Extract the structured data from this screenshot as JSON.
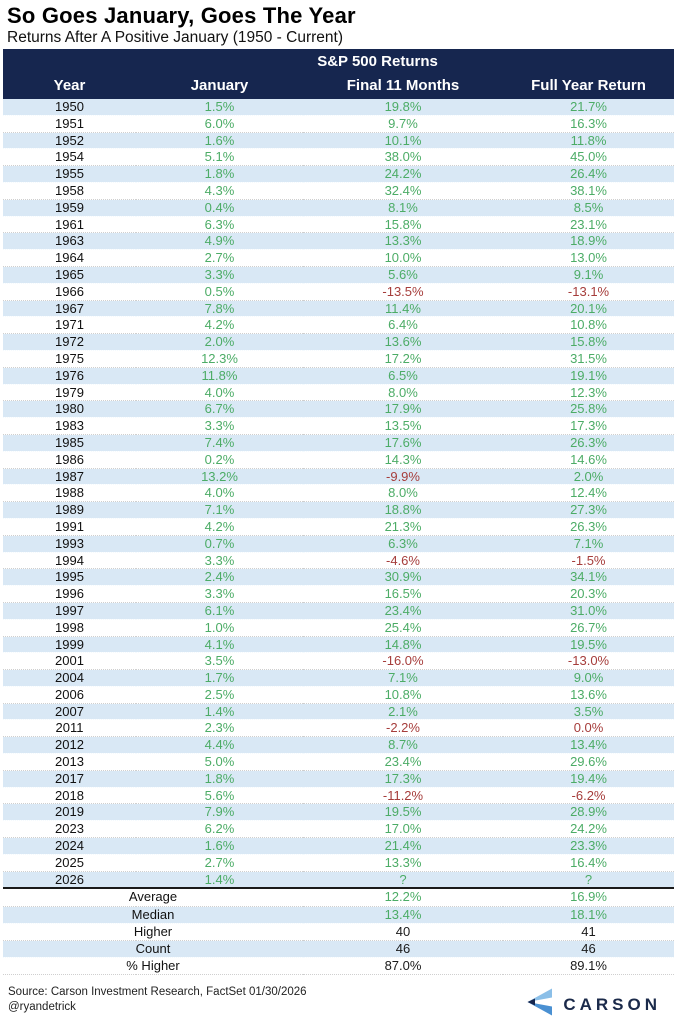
{
  "colors": {
    "header_bg": "#16264F",
    "row_stripe": "#D9E8F5",
    "positive_green": "#4CAC66",
    "negative_red": "#A63D3B",
    "text_black": "#1A1A1A",
    "logo_light_blue": "#8BBFE8",
    "logo_mid_blue": "#4A90D2",
    "logo_navy": "#16264F"
  },
  "footer": {
    "source": "Source: Carson Investment Research, FactSet 01/30/2026",
    "handle": "@ryandetrick",
    "logo_text": "CARSON",
    "logo_icon": "carson-chevron-icon"
  },
  "chart_data": {
    "type": "table",
    "title": "So Goes January, Goes The Year",
    "subtitle": "Returns After A Positive January (1950 - Current)",
    "group_header": "S&P 500 Returns",
    "columns": [
      "Year",
      "January",
      "Final 11 Months",
      "Full Year Return"
    ],
    "layout_hints": {
      "zebra_striping": true,
      "positive_values_green": true,
      "negative_values_red": true,
      "summary_separator": "2px solid black line above Average row"
    },
    "rows": [
      [
        "1950",
        "1.5%",
        "19.8%",
        "21.7%",
        0,
        0
      ],
      [
        "1951",
        "6.0%",
        "9.7%",
        "16.3%",
        0,
        0
      ],
      [
        "1952",
        "1.6%",
        "10.1%",
        "11.8%",
        0,
        0
      ],
      [
        "1954",
        "5.1%",
        "38.0%",
        "45.0%",
        0,
        0
      ],
      [
        "1955",
        "1.8%",
        "24.2%",
        "26.4%",
        0,
        0
      ],
      [
        "1958",
        "4.3%",
        "32.4%",
        "38.1%",
        0,
        0
      ],
      [
        "1959",
        "0.4%",
        "8.1%",
        "8.5%",
        0,
        0
      ],
      [
        "1961",
        "6.3%",
        "15.8%",
        "23.1%",
        0,
        0
      ],
      [
        "1963",
        "4.9%",
        "13.3%",
        "18.9%",
        0,
        0
      ],
      [
        "1964",
        "2.7%",
        "10.0%",
        "13.0%",
        0,
        0
      ],
      [
        "1965",
        "3.3%",
        "5.6%",
        "9.1%",
        0,
        0
      ],
      [
        "1966",
        "0.5%",
        "-13.5%",
        "-13.1%",
        1,
        1
      ],
      [
        "1967",
        "7.8%",
        "11.4%",
        "20.1%",
        0,
        0
      ],
      [
        "1971",
        "4.2%",
        "6.4%",
        "10.8%",
        0,
        0
      ],
      [
        "1972",
        "2.0%",
        "13.6%",
        "15.8%",
        0,
        0
      ],
      [
        "1975",
        "12.3%",
        "17.2%",
        "31.5%",
        0,
        0
      ],
      [
        "1976",
        "11.8%",
        "6.5%",
        "19.1%",
        0,
        0
      ],
      [
        "1979",
        "4.0%",
        "8.0%",
        "12.3%",
        0,
        0
      ],
      [
        "1980",
        "6.7%",
        "17.9%",
        "25.8%",
        0,
        0
      ],
      [
        "1983",
        "3.3%",
        "13.5%",
        "17.3%",
        0,
        0
      ],
      [
        "1985",
        "7.4%",
        "17.6%",
        "26.3%",
        0,
        0
      ],
      [
        "1986",
        "0.2%",
        "14.3%",
        "14.6%",
        0,
        0
      ],
      [
        "1987",
        "13.2%",
        "-9.9%",
        "2.0%",
        1,
        0
      ],
      [
        "1988",
        "4.0%",
        "8.0%",
        "12.4%",
        0,
        0
      ],
      [
        "1989",
        "7.1%",
        "18.8%",
        "27.3%",
        0,
        0
      ],
      [
        "1991",
        "4.2%",
        "21.3%",
        "26.3%",
        0,
        0
      ],
      [
        "1993",
        "0.7%",
        "6.3%",
        "7.1%",
        0,
        0
      ],
      [
        "1994",
        "3.3%",
        "-4.6%",
        "-1.5%",
        1,
        1
      ],
      [
        "1995",
        "2.4%",
        "30.9%",
        "34.1%",
        0,
        0
      ],
      [
        "1996",
        "3.3%",
        "16.5%",
        "20.3%",
        0,
        0
      ],
      [
        "1997",
        "6.1%",
        "23.4%",
        "31.0%",
        0,
        0
      ],
      [
        "1998",
        "1.0%",
        "25.4%",
        "26.7%",
        0,
        0
      ],
      [
        "1999",
        "4.1%",
        "14.8%",
        "19.5%",
        0,
        0
      ],
      [
        "2001",
        "3.5%",
        "-16.0%",
        "-13.0%",
        1,
        1
      ],
      [
        "2004",
        "1.7%",
        "7.1%",
        "9.0%",
        0,
        0
      ],
      [
        "2006",
        "2.5%",
        "10.8%",
        "13.6%",
        0,
        0
      ],
      [
        "2007",
        "1.4%",
        "2.1%",
        "3.5%",
        0,
        0
      ],
      [
        "2011",
        "2.3%",
        "-2.2%",
        "0.0%",
        1,
        1
      ],
      [
        "2012",
        "4.4%",
        "8.7%",
        "13.4%",
        0,
        0
      ],
      [
        "2013",
        "5.0%",
        "23.4%",
        "29.6%",
        0,
        0
      ],
      [
        "2017",
        "1.8%",
        "17.3%",
        "19.4%",
        0,
        0
      ],
      [
        "2018",
        "5.6%",
        "-11.2%",
        "-6.2%",
        1,
        1
      ],
      [
        "2019",
        "7.9%",
        "19.5%",
        "28.9%",
        0,
        0
      ],
      [
        "2023",
        "6.2%",
        "17.0%",
        "24.2%",
        0,
        0
      ],
      [
        "2024",
        "1.6%",
        "21.4%",
        "23.3%",
        0,
        0
      ],
      [
        "2025",
        "2.7%",
        "13.3%",
        "16.4%",
        0,
        0
      ],
      [
        "2026",
        "1.4%",
        "?",
        "?",
        0,
        0
      ]
    ],
    "summary": [
      {
        "label": "Average",
        "final": "12.2%",
        "full": "16.9%",
        "color": "green"
      },
      {
        "label": "Median",
        "final": "13.4%",
        "full": "18.1%",
        "color": "green"
      },
      {
        "label": "Higher",
        "final": "40",
        "full": "41",
        "color": "black"
      },
      {
        "label": "Count",
        "final": "46",
        "full": "46",
        "color": "black"
      },
      {
        "label": "% Higher",
        "final": "87.0%",
        "full": "89.1%",
        "color": "black"
      }
    ]
  }
}
